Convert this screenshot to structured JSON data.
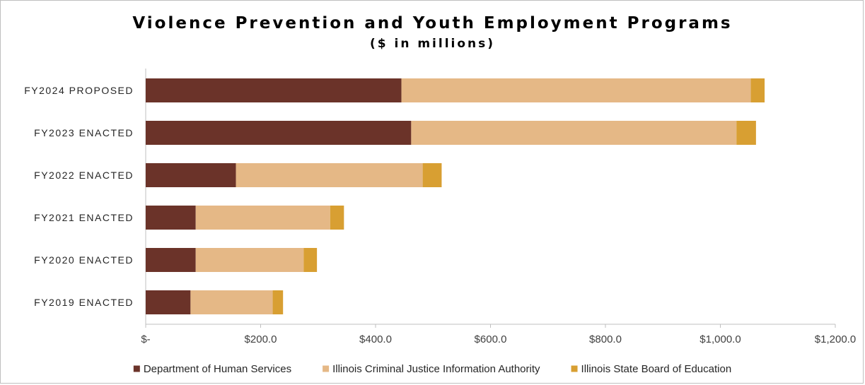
{
  "chart_data": {
    "type": "bar",
    "orientation": "horizontal",
    "stacked": true,
    "title": "Violence Prevention and Youth Employment Programs",
    "subtitle": "($ in millions)",
    "categories": [
      "FY2024 PROPOSED",
      "FY2023 ENACTED",
      "FY2022 ENACTED",
      "FY2021 ENACTED",
      "FY2020 ENACTED",
      "FY2019 ENACTED"
    ],
    "series": [
      {
        "name": "Department of Human Services",
        "color": "#6b3329",
        "values": [
          445,
          462,
          157,
          87,
          87,
          78
        ]
      },
      {
        "name": "Illinois Criminal Justice Information Authority",
        "color": "#e5b886",
        "values": [
          608,
          566,
          325,
          234,
          188,
          143
        ]
      },
      {
        "name": "Illinois State Board of Education",
        "color": "#d89f32",
        "values": [
          24,
          34,
          33,
          24,
          23,
          18
        ]
      }
    ],
    "xlim": [
      0,
      1200
    ],
    "xticks": [
      0,
      200,
      400,
      600,
      800,
      1000,
      1200
    ],
    "xtick_labels": [
      "$-",
      "$200.0",
      "$400.0",
      "$600.0",
      "$800.0",
      "$1,000.0",
      "$1,200.0"
    ],
    "grid": false,
    "legend_position": "bottom"
  }
}
